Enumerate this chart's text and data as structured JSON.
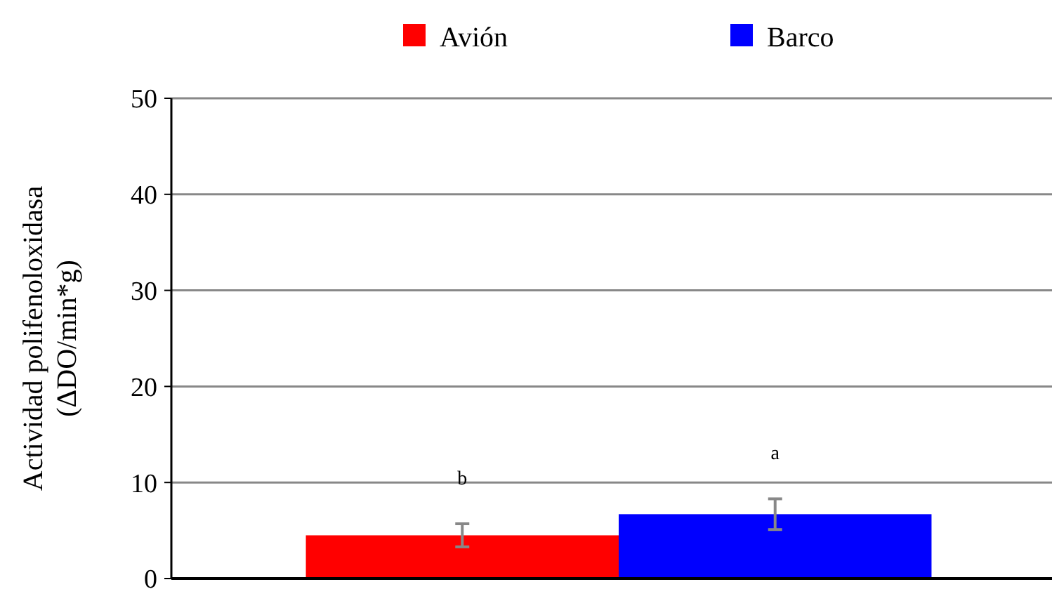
{
  "chart_data": {
    "type": "bar",
    "categories": [
      null
    ],
    "ylabel": "Actividad polifenoloxidasa\n(ΔDO/min*g)",
    "ylim": [
      0,
      50
    ],
    "yticks": [
      0,
      10,
      20,
      30,
      40,
      50
    ],
    "grid": "y",
    "legend": "top",
    "series": [
      {
        "name": "Avión",
        "color": "#ff0000",
        "values": [
          4.5
        ],
        "errors": [
          1.2
        ]
      },
      {
        "name": "Barco",
        "color": "#0000ff",
        "values": [
          6.7
        ],
        "errors": [
          1.6
        ]
      }
    ],
    "annotations": [
      "b",
      "a"
    ]
  }
}
